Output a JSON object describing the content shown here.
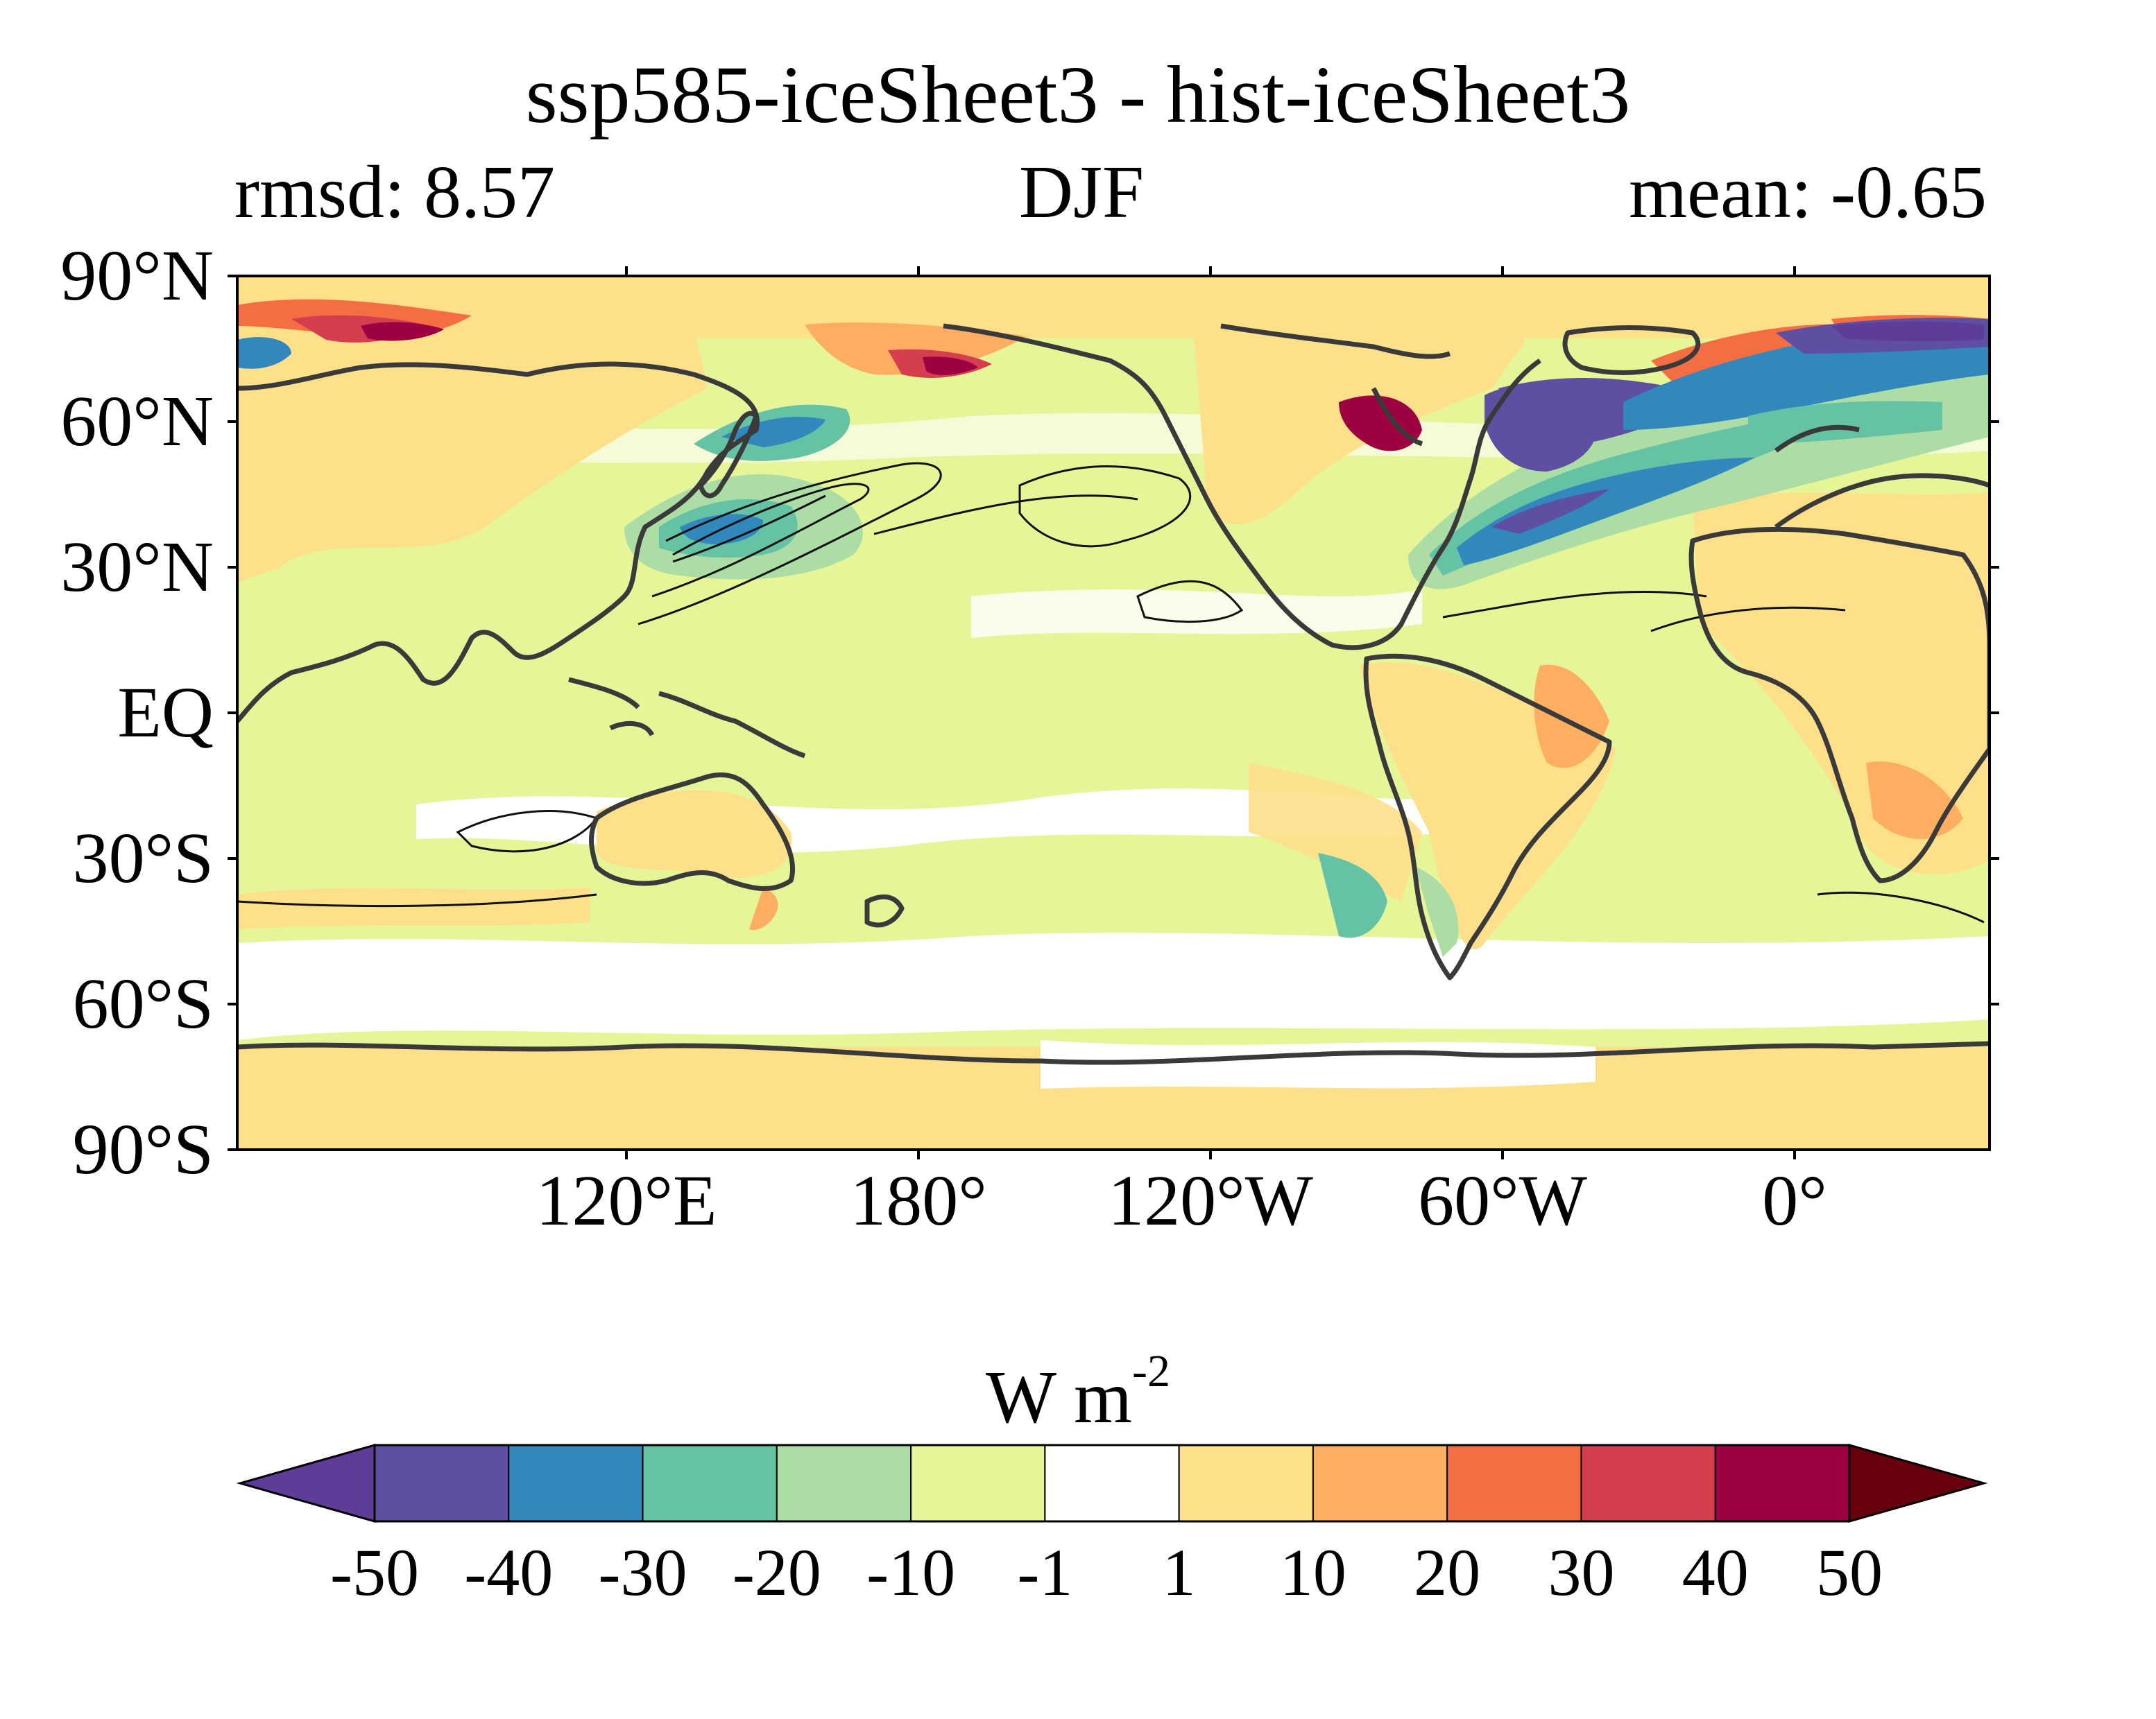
{
  "title": "ssp585-iceSheet3 - hist-iceSheet3",
  "subtitle_left": "rmsd: 8.57",
  "subtitle_center": "DJF",
  "subtitle_right": "mean: -0.65",
  "map": {
    "projection": "equirectangular",
    "central_longitude": 150,
    "lat_ticks": [
      "90°N",
      "60°N",
      "30°N",
      "EQ",
      "30°S",
      "60°S",
      "90°S"
    ],
    "lon_ticks": [
      "120°E",
      "180°",
      "120°W",
      "60°W",
      "0°"
    ],
    "field": "DJF surface energy flux difference (filled contours) with continent outlines and line contours",
    "regions": {
      "north_atlantic_cooling": "strong negative values (-50 to -20) off NE North America and Labrador/Greenland seas",
      "kuroshio_cooling": "negative values (-40 to -10) east of Japan",
      "arctic_warming": "positive values (20 to 50) near Barents Sea, Bering Strait and Hudson Bay",
      "southern_ocean": "weak negative (-10 to -1) band, Antarctica weakly positive (1 to 10)"
    }
  },
  "colorbar": {
    "label_main": "W m",
    "label_sup": "-2",
    "ticks": [
      "-50",
      "-40",
      "-30",
      "-20",
      "-10",
      "-1",
      "1",
      "10",
      "20",
      "30",
      "40",
      "50"
    ],
    "colors": [
      "#5e3c99",
      "#5e4fa2",
      "#3288bd",
      "#66c2a5",
      "#abdda4",
      "#e6f598",
      "#ffffff",
      "#fee08b",
      "#fdae61",
      "#f46d43",
      "#d53e4f",
      "#9e0142",
      "#67000d"
    ]
  },
  "chart_data": {
    "type": "heatmap",
    "title": "ssp585-iceSheet3 - hist-iceSheet3",
    "season": "DJF",
    "rmsd": 8.57,
    "mean": -0.65,
    "units": "W m-2",
    "levels": [
      -50,
      -40,
      -30,
      -20,
      -10,
      -1,
      1,
      10,
      20,
      30,
      40,
      50
    ],
    "colorbar_extend": "both"
  }
}
